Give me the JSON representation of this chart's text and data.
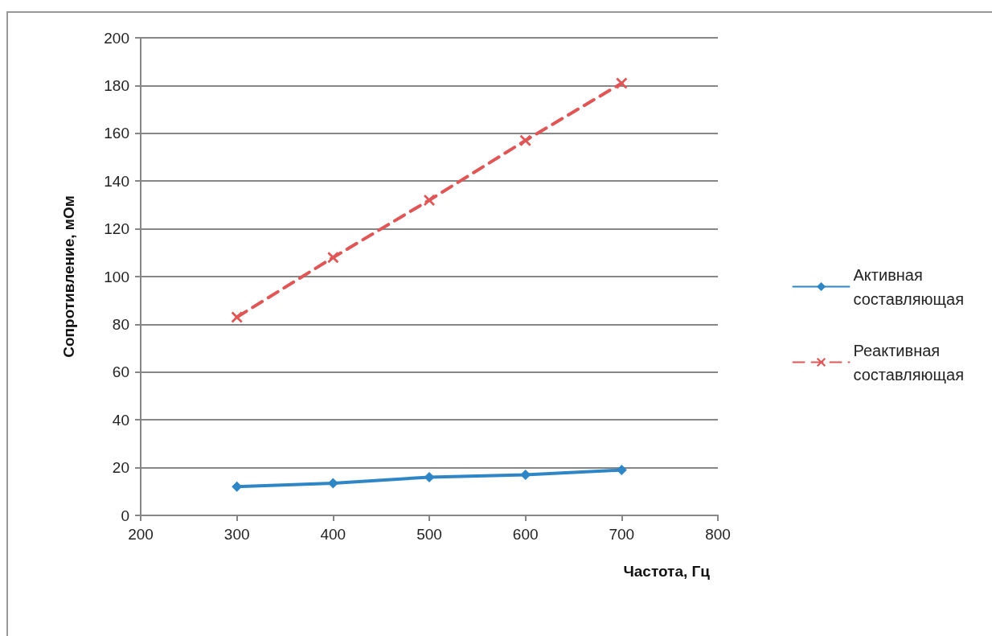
{
  "chart_data": {
    "type": "line",
    "xlabel": "Частота, Гц",
    "ylabel": "Сопротивление, мОм",
    "x": [
      300,
      400,
      500,
      600,
      700
    ],
    "series": [
      {
        "name": "Активная составляющая",
        "color": "#2e86c6",
        "values": [
          12,
          13.5,
          16,
          17,
          19
        ],
        "marker": "diamond",
        "line_style": "solid"
      },
      {
        "name": "Реактивная составляющая",
        "color": "#e05656",
        "values": [
          83,
          108,
          132,
          157,
          181
        ],
        "marker": "cross",
        "line_style": "dashed"
      }
    ],
    "xlim": [
      200,
      800
    ],
    "xticks": [
      200,
      300,
      400,
      500,
      600,
      700,
      800
    ],
    "ylim": [
      0,
      200
    ],
    "yticks": [
      0,
      20,
      40,
      60,
      80,
      100,
      120,
      140,
      160,
      180,
      200
    ],
    "grid": "y",
    "legend": "right"
  }
}
